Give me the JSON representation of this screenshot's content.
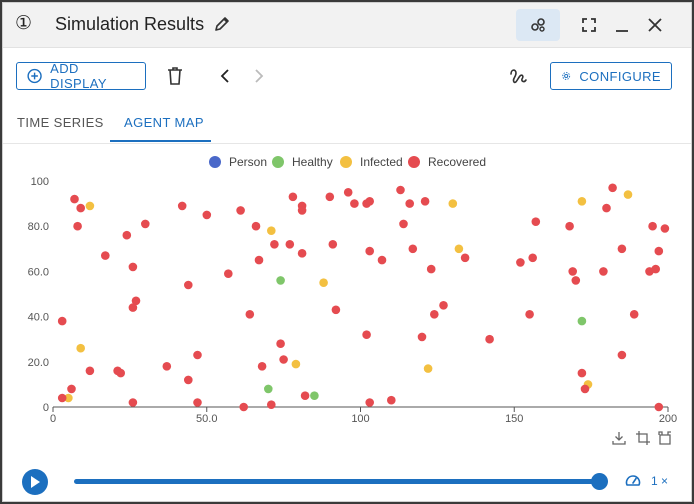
{
  "window": {
    "number": "①",
    "title": "Simulation Results"
  },
  "toolbar": {
    "add_display_label": "ADD DISPLAY",
    "configure_label": "CONFIGURE"
  },
  "tabs": [
    {
      "label": "TIME SERIES",
      "active": false
    },
    {
      "label": "AGENT MAP",
      "active": true
    }
  ],
  "playback": {
    "progress": 1.0,
    "speed_label": "1 ×"
  },
  "colors": {
    "accent": "#1c6fbf",
    "Person": "#4a68c9",
    "Healthy": "#7fc66a",
    "Infected": "#f3c041",
    "Recovered": "#e54b50"
  },
  "chart_data": {
    "type": "scatter",
    "xlim": [
      0,
      200
    ],
    "ylim": [
      0,
      100
    ],
    "x_ticks": [
      "0",
      "50.0",
      "100",
      "150",
      "200"
    ],
    "y_ticks": [
      "0",
      "20.0",
      "40.0",
      "60.0",
      "80.0",
      "100"
    ],
    "legend_position": "top-center",
    "series": [
      {
        "name": "Person",
        "points": []
      },
      {
        "name": "Healthy",
        "points": [
          [
            70,
            8
          ],
          [
            74,
            56
          ],
          [
            85,
            5
          ],
          [
            172,
            38
          ]
        ]
      },
      {
        "name": "Infected",
        "points": [
          [
            5,
            4
          ],
          [
            9,
            26
          ],
          [
            12,
            89
          ],
          [
            71,
            78
          ],
          [
            79,
            19
          ],
          [
            88,
            55
          ],
          [
            130,
            90
          ],
          [
            132,
            70
          ],
          [
            122,
            17
          ],
          [
            172,
            91
          ],
          [
            174,
            10
          ],
          [
            187,
            94
          ]
        ]
      },
      {
        "name": "Recovered",
        "points": [
          [
            3,
            4
          ],
          [
            3,
            38
          ],
          [
            6,
            8
          ],
          [
            7,
            92
          ],
          [
            8,
            80
          ],
          [
            9,
            88
          ],
          [
            12,
            16
          ],
          [
            17,
            67
          ],
          [
            21,
            16
          ],
          [
            22,
            15
          ],
          [
            24,
            76
          ],
          [
            26,
            2
          ],
          [
            26,
            62
          ],
          [
            26,
            44
          ],
          [
            27,
            47
          ],
          [
            30,
            81
          ],
          [
            37,
            18
          ],
          [
            42,
            89
          ],
          [
            44,
            54
          ],
          [
            44,
            12
          ],
          [
            47,
            2
          ],
          [
            47,
            23
          ],
          [
            50,
            85
          ],
          [
            57,
            59
          ],
          [
            61,
            87
          ],
          [
            62,
            0
          ],
          [
            64,
            41
          ],
          [
            66,
            80
          ],
          [
            67,
            65
          ],
          [
            68,
            18
          ],
          [
            71,
            1
          ],
          [
            72,
            72
          ],
          [
            74,
            28
          ],
          [
            75,
            21
          ],
          [
            77,
            72
          ],
          [
            78,
            93
          ],
          [
            81,
            89
          ],
          [
            81,
            87
          ],
          [
            81,
            68
          ],
          [
            82,
            5
          ],
          [
            90,
            93
          ],
          [
            91,
            72
          ],
          [
            92,
            43
          ],
          [
            96,
            95
          ],
          [
            98,
            90
          ],
          [
            102,
            32
          ],
          [
            102,
            90
          ],
          [
            103,
            69
          ],
          [
            103,
            2
          ],
          [
            103,
            91
          ],
          [
            107,
            65
          ],
          [
            110,
            3
          ],
          [
            113,
            96
          ],
          [
            114,
            81
          ],
          [
            116,
            90
          ],
          [
            117,
            70
          ],
          [
            120,
            31
          ],
          [
            121,
            91
          ],
          [
            123,
            61
          ],
          [
            124,
            41
          ],
          [
            127,
            45
          ],
          [
            134,
            66
          ],
          [
            142,
            30
          ],
          [
            152,
            64
          ],
          [
            155,
            41
          ],
          [
            156,
            66
          ],
          [
            157,
            82
          ],
          [
            168,
            80
          ],
          [
            169,
            60
          ],
          [
            170,
            56
          ],
          [
            172,
            15
          ],
          [
            173,
            8
          ],
          [
            179,
            60
          ],
          [
            180,
            88
          ],
          [
            182,
            97
          ],
          [
            185,
            70
          ],
          [
            185,
            23
          ],
          [
            189,
            41
          ],
          [
            194,
            60
          ],
          [
            195,
            80
          ],
          [
            196,
            61
          ],
          [
            197,
            69
          ],
          [
            197,
            0
          ],
          [
            199,
            79
          ]
        ]
      }
    ]
  }
}
